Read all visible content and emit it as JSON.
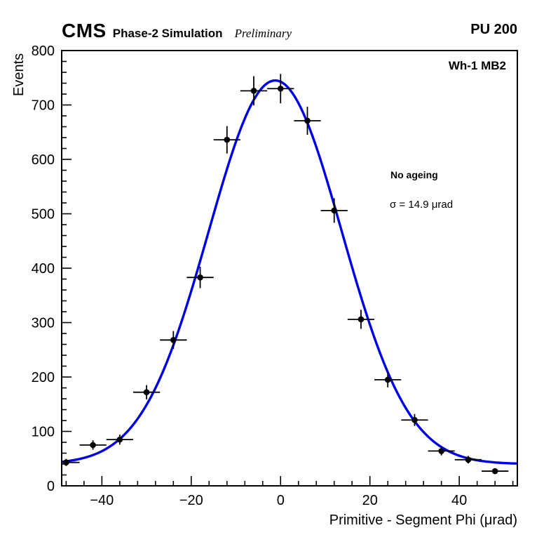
{
  "header": {
    "experiment": "CMS",
    "label": "Phase-2 Simulation",
    "sublabel": "Preliminary",
    "right_label": "PU 200"
  },
  "plot": {
    "region_label": "Wh-1 MB2",
    "annotation_title": "No ageing",
    "annotation_value": "σ = 14.9 μrad"
  },
  "chart_data": {
    "type": "scatter",
    "title": "",
    "xlabel": "Primitive - Segment Phi (μrad)",
    "ylabel": "Events",
    "xlim": [
      -49,
      53
    ],
    "ylim": [
      0,
      800
    ],
    "x_major_ticks": [
      -40,
      -20,
      0,
      20,
      40
    ],
    "x_minor_step": 4,
    "y_major_ticks": [
      0,
      100,
      200,
      300,
      400,
      500,
      600,
      700,
      800
    ],
    "y_minor_step": 20,
    "grid": false,
    "series": [
      {
        "name": "data-points",
        "marker": "filled-circle",
        "color": "#000000",
        "x": [
          -48,
          -42,
          -36,
          -30,
          -24,
          -18,
          -12,
          -6,
          0,
          6,
          12,
          18,
          24,
          30,
          36,
          42,
          48
        ],
        "y": [
          43,
          75,
          85,
          172,
          268,
          383,
          636,
          726,
          730,
          671,
          506,
          306,
          195,
          121,
          64,
          48,
          27
        ],
        "xerr": 3,
        "yerr": [
          6.6,
          8.7,
          9.2,
          13.1,
          16.4,
          19.6,
          25.2,
          26.9,
          27.0,
          25.9,
          22.5,
          17.5,
          14.0,
          11.0,
          8.0,
          6.9,
          5.2
        ]
      },
      {
        "name": "gaussian-fit",
        "style": "line",
        "color": "#0000e6",
        "fit": {
          "shape": "gaussian+constant",
          "mean": -1.2,
          "sigma": 14.9,
          "amplitude": 705,
          "baseline": 40
        }
      }
    ]
  }
}
